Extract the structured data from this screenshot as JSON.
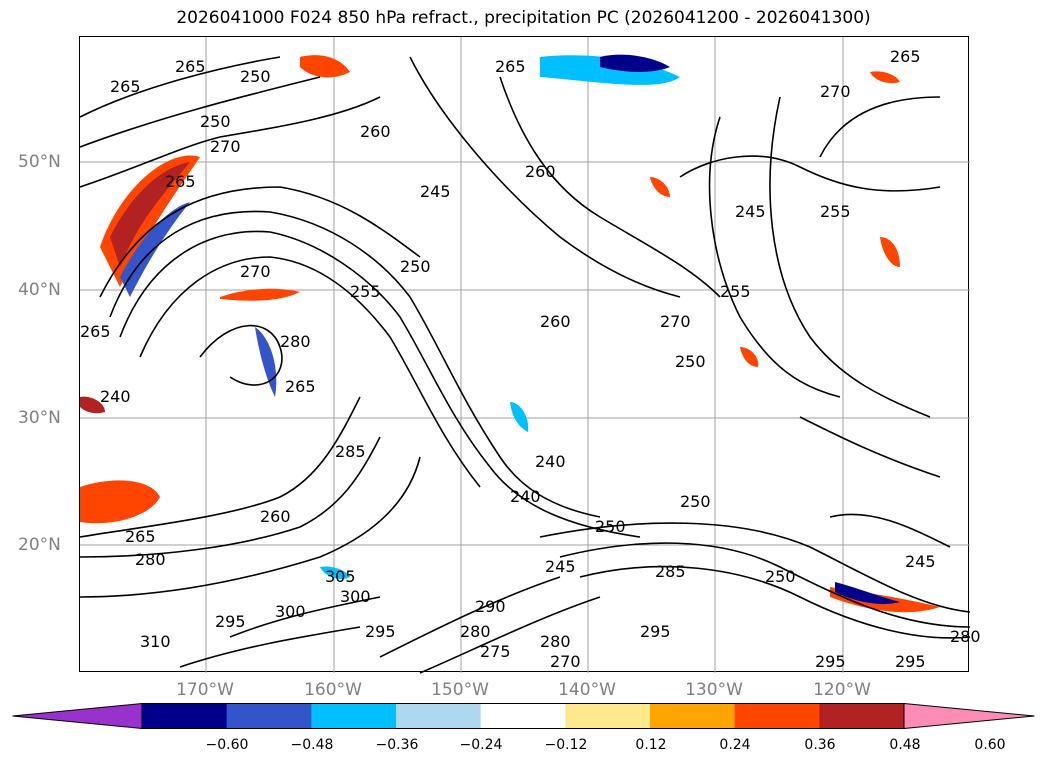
{
  "title": "2026041000 F024 850 hPa refract., precipitation PC (2026041200 - 2026041300)",
  "lat_labels": [
    "50°N",
    "40°N",
    "30°N",
    "20°N"
  ],
  "lon_labels": [
    "170°W",
    "160°W",
    "150°W",
    "140°W",
    "130°W",
    "120°W"
  ],
  "contour_labels": [
    "265",
    "265",
    "250",
    "265",
    "250",
    "270",
    "260",
    "265",
    "260",
    "245",
    "250",
    "270",
    "255",
    "265",
    "270",
    "240",
    "255",
    "260",
    "250",
    "265",
    "280",
    "260",
    "265",
    "280",
    "285",
    "305",
    "300",
    "300",
    "295",
    "295",
    "310",
    "275",
    "240",
    "240",
    "245",
    "245",
    "250",
    "250",
    "250",
    "285",
    "295",
    "270",
    "280",
    "280",
    "290",
    "245",
    "295",
    "270",
    "280",
    "255",
    "265",
    "295"
  ],
  "colorbar": {
    "ticks": [
      "−0.60",
      "−0.48",
      "−0.36",
      "−0.24",
      "−0.12",
      "0.12",
      "0.24",
      "0.36",
      "0.48",
      "0.60"
    ],
    "colors": [
      "#9932cc",
      "#00008b",
      "#3455c9",
      "#00bfff",
      "#add8f0",
      "#ffffff",
      "#ffe98c",
      "#ffa500",
      "#ff4500",
      "#b22222",
      "#ff8cb4"
    ]
  }
}
